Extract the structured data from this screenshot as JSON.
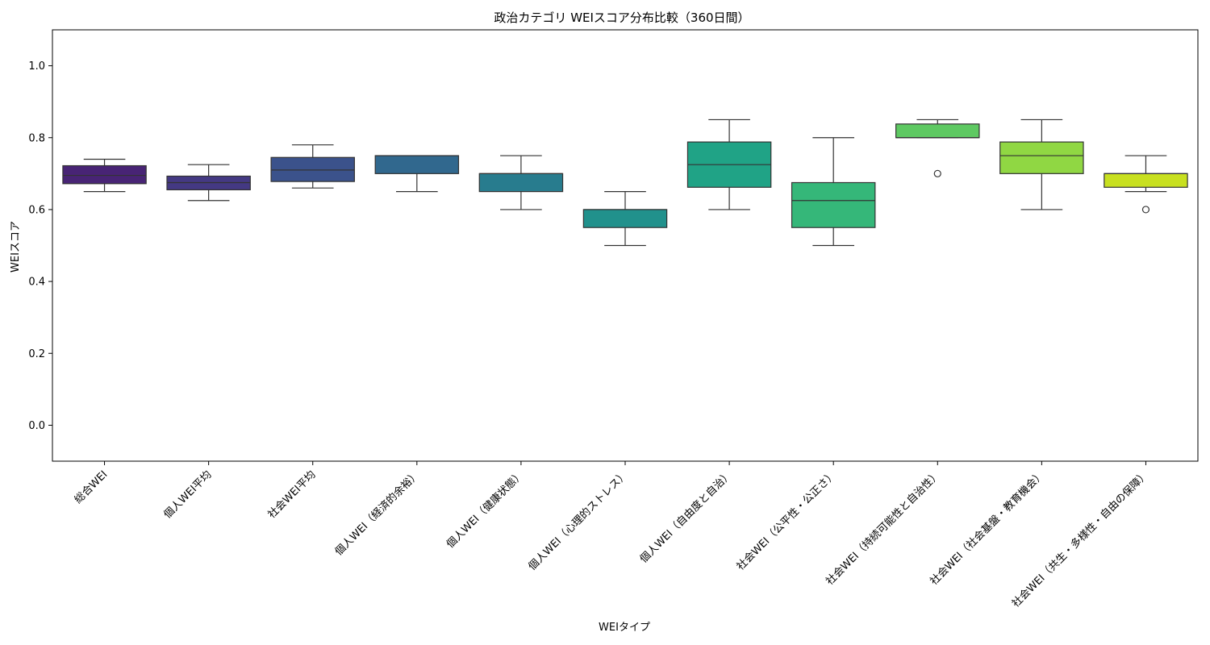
{
  "chart_data": {
    "type": "box",
    "title": "政治カテゴリ WEIスコア分布比較（360日間）",
    "xlabel": "WEIタイプ",
    "ylabel": "WEIスコア",
    "ylim": [
      -0.1,
      1.1
    ],
    "yticks": [
      "0.0",
      "0.2",
      "0.4",
      "0.6",
      "0.8",
      "1.0"
    ],
    "grid": false,
    "legend": "none",
    "categories": [
      "総合WEI",
      "個人WEI平均",
      "社会WEI平均",
      "個人WEI（経済的余裕）",
      "個人WEI（健康状態）",
      "個人WEI（心理的ストレス）",
      "個人WEI（自由度と自治）",
      "社会WEI（公平性・公正さ）",
      "社会WEI（持続可能性と自治性）",
      "社会WEI（社会基盤・教育機会）",
      "社会WEI（共生・多様性・自由の保障）"
    ],
    "boxes": [
      {
        "whisker_low": 0.65,
        "q1": 0.672,
        "median": 0.695,
        "q3": 0.722,
        "whisker_high": 0.74,
        "outliers": [],
        "color": "#482475"
      },
      {
        "whisker_low": 0.625,
        "q1": 0.655,
        "median": 0.675,
        "q3": 0.693,
        "whisker_high": 0.725,
        "outliers": [],
        "color": "#443983"
      },
      {
        "whisker_low": 0.66,
        "q1": 0.678,
        "median": 0.71,
        "q3": 0.745,
        "whisker_high": 0.78,
        "outliers": [],
        "color": "#3b528b"
      },
      {
        "whisker_low": 0.65,
        "q1": 0.7,
        "median": 0.75,
        "q3": 0.75,
        "whisker_high": 0.75,
        "outliers": [],
        "color": "#31688e"
      },
      {
        "whisker_low": 0.6,
        "q1": 0.65,
        "median": 0.7,
        "q3": 0.7,
        "whisker_high": 0.75,
        "outliers": [],
        "color": "#287c8e"
      },
      {
        "whisker_low": 0.5,
        "q1": 0.55,
        "median": 0.6,
        "q3": 0.6,
        "whisker_high": 0.65,
        "outliers": [],
        "color": "#21918c"
      },
      {
        "whisker_low": 0.6,
        "q1": 0.662,
        "median": 0.725,
        "q3": 0.788,
        "whisker_high": 0.85,
        "outliers": [],
        "color": "#20a386"
      },
      {
        "whisker_low": 0.5,
        "q1": 0.55,
        "median": 0.625,
        "q3": 0.675,
        "whisker_high": 0.8,
        "outliers": [],
        "color": "#35b779"
      },
      {
        "whisker_low": 0.8,
        "q1": 0.8,
        "median": 0.8,
        "q3": 0.838,
        "whisker_high": 0.85,
        "outliers": [
          0.7
        ],
        "color": "#5ec962"
      },
      {
        "whisker_low": 0.6,
        "q1": 0.7,
        "median": 0.75,
        "q3": 0.788,
        "whisker_high": 0.85,
        "outliers": [],
        "color": "#90d743"
      },
      {
        "whisker_low": 0.65,
        "q1": 0.662,
        "median": 0.7,
        "q3": 0.7,
        "whisker_high": 0.75,
        "outliers": [
          0.6
        ],
        "color": "#c8e020"
      }
    ]
  }
}
